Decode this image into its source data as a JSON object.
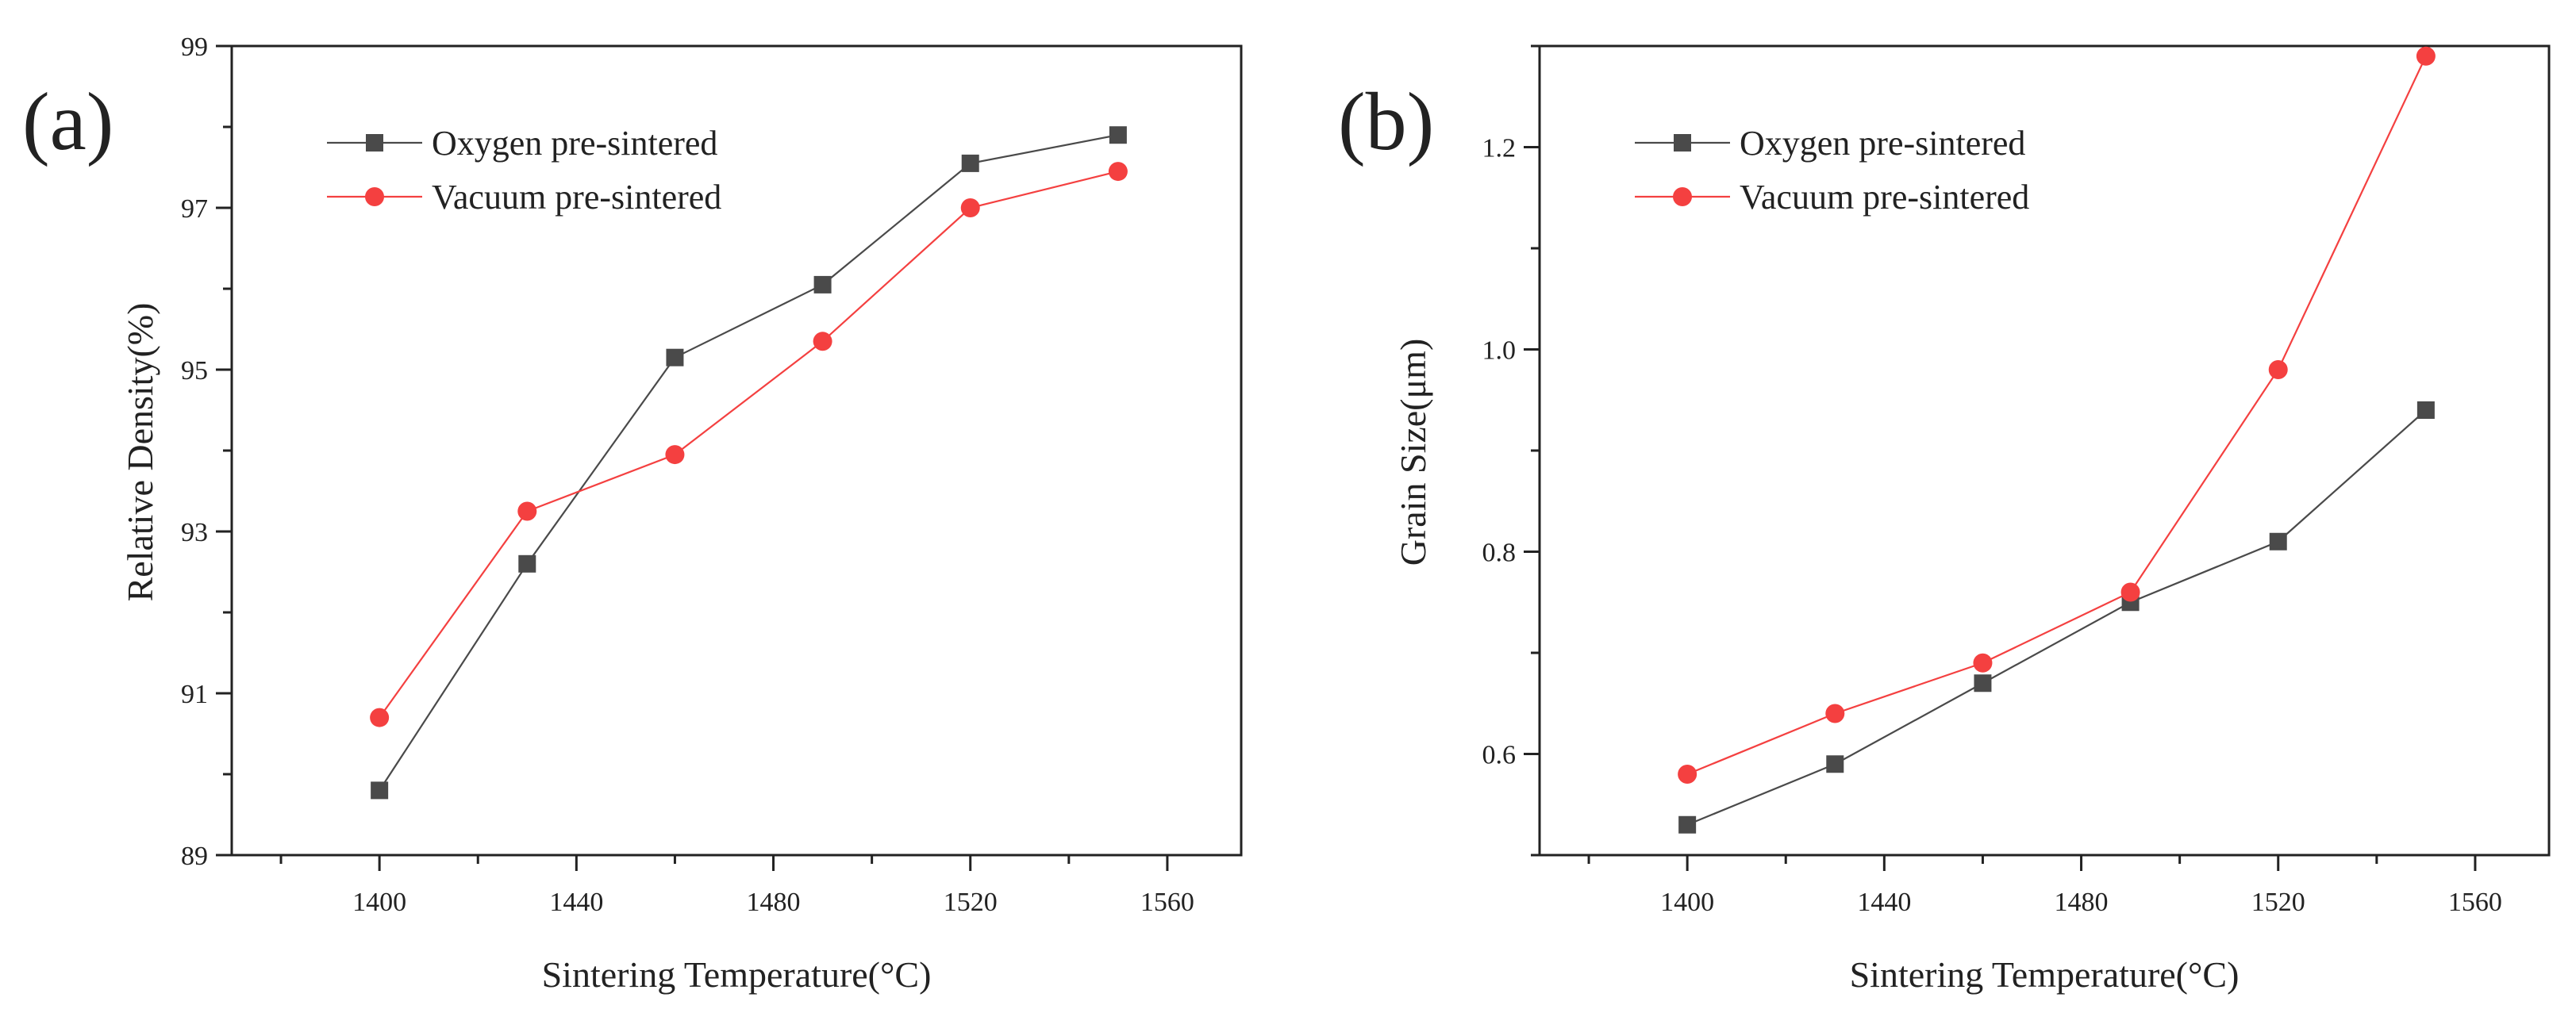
{
  "colors": {
    "oxygen": "#4a4a4a",
    "vacuum": "#f44040",
    "axis": "#222222"
  },
  "chart_data": [
    {
      "type": "line",
      "panel_label": "(a)",
      "x": [
        1400,
        1430,
        1460,
        1490,
        1520,
        1550
      ],
      "xticks": [
        1400,
        1440,
        1480,
        1520,
        1560
      ],
      "xtick_labels": [
        "1400",
        "1440",
        "1480",
        "1520",
        "1560"
      ],
      "xlim": [
        1370,
        1575
      ],
      "ylim": [
        89,
        99
      ],
      "yticks": [
        89,
        91,
        93,
        95,
        97,
        99
      ],
      "ytick_labels": [
        "89",
        "91",
        "93",
        "95",
        "97",
        "99"
      ],
      "y_minor_step": 1,
      "xlabel": "Sintering Temperature(°C)",
      "ylabel": "Relative Density(%)",
      "legend_position": "top-left",
      "series": [
        {
          "name": "Oxygen pre-sintered",
          "marker": "square",
          "color": "#4a4a4a",
          "values": [
            89.8,
            92.6,
            95.15,
            96.05,
            97.55,
            97.9
          ]
        },
        {
          "name": "Vacuum pre-sintered",
          "marker": "circle",
          "color": "#f44040",
          "values": [
            90.7,
            93.25,
            93.95,
            95.35,
            97.0,
            97.45
          ]
        }
      ]
    },
    {
      "type": "line",
      "panel_label": "(b)",
      "x": [
        1400,
        1430,
        1460,
        1490,
        1520,
        1550
      ],
      "xticks": [
        1400,
        1440,
        1480,
        1520,
        1560
      ],
      "xtick_labels": [
        "1400",
        "1440",
        "1480",
        "1520",
        "1560"
      ],
      "xlim": [
        1370,
        1575
      ],
      "ylim": [
        0.5,
        1.3
      ],
      "yticks": [
        0.6,
        0.8,
        1.0,
        1.2
      ],
      "ytick_labels": [
        "0.6",
        "0.8",
        "1.0",
        "1.2"
      ],
      "y_minor_step": 0.1,
      "xlabel": "Sintering Temperature(°C)",
      "ylabel": "Grain Size(μm)",
      "legend_position": "top-left",
      "series": [
        {
          "name": "Oxygen pre-sintered",
          "marker": "square",
          "color": "#4a4a4a",
          "values": [
            0.53,
            0.59,
            0.67,
            0.75,
            0.81,
            0.94
          ]
        },
        {
          "name": "Vacuum pre-sintered",
          "marker": "circle",
          "color": "#f44040",
          "values": [
            0.58,
            0.64,
            0.69,
            0.76,
            0.98,
            1.29
          ]
        }
      ]
    }
  ]
}
